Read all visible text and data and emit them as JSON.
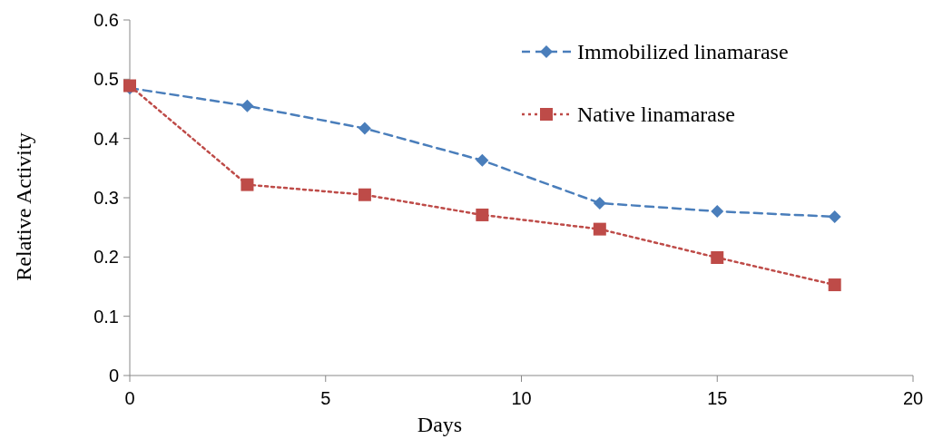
{
  "chart_data": {
    "type": "line",
    "xlabel": "Days",
    "ylabel": "Relative Activity",
    "x": [
      0,
      3,
      6,
      9,
      12,
      15,
      18
    ],
    "series": [
      {
        "name": "Immobilized linamarase",
        "color": "#4a7ebb",
        "marker": "diamond",
        "line_style": "dashed",
        "values": [
          0.485,
          0.455,
          0.417,
          0.363,
          0.291,
          0.277,
          0.268
        ]
      },
      {
        "name": "Native linamarase",
        "color": "#be4b48",
        "marker": "square",
        "line_style": "dotted",
        "values": [
          0.489,
          0.322,
          0.305,
          0.271,
          0.247,
          0.199,
          0.153
        ]
      }
    ],
    "xlim": [
      0,
      20
    ],
    "xticks": [
      0,
      5,
      10,
      15,
      20
    ],
    "ylim": [
      0,
      0.6
    ],
    "yticks": [
      0,
      0.1,
      0.2,
      0.3,
      0.4,
      0.5,
      0.6
    ],
    "legend": "top right",
    "grid": false
  }
}
